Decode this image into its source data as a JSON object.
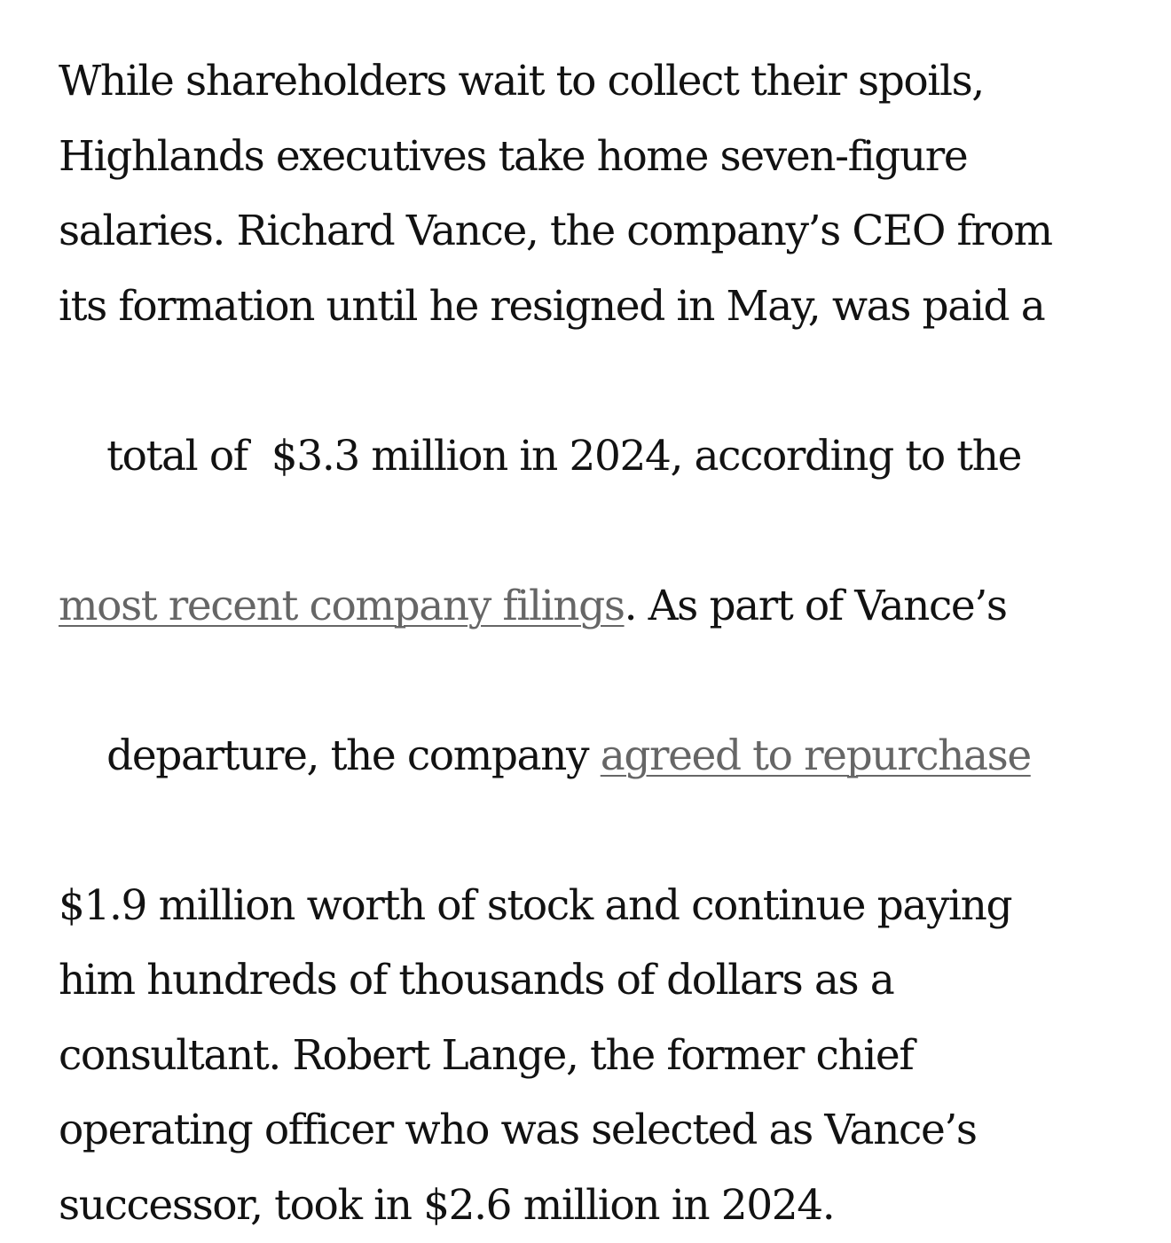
{
  "article": {
    "lines": [
      {
        "segments": [
          {
            "text": "While shareholders wait to collect their spoils,"
          }
        ]
      },
      {
        "segments": [
          {
            "text": "Highlands executives take home seven-figure"
          }
        ]
      },
      {
        "segments": [
          {
            "text": "salaries. Richard Vance, the company’s CEO from"
          }
        ]
      },
      {
        "segments": [
          {
            "text": "its formation until he resigned in May, was paid a"
          }
        ]
      },
      {
        "segments": [
          {
            "text": "total of  $3.3 million in 2024, according to the"
          }
        ]
      },
      {
        "segments": [
          {
            "text": "most recent company filings",
            "link": true
          },
          {
            "text": ". As part of Vance’s"
          }
        ]
      },
      {
        "segments": [
          {
            "text": "departure, the company "
          },
          {
            "text": "agreed to repurchase",
            "link": true
          }
        ]
      },
      {
        "segments": [
          {
            "text": "$1.9 million worth of stock and continue paying"
          }
        ]
      },
      {
        "segments": [
          {
            "text": "him hundreds of thousands of dollars as a"
          }
        ]
      },
      {
        "segments": [
          {
            "text": "consultant. Robert Lange, the former chief"
          }
        ]
      },
      {
        "segments": [
          {
            "text": "operating officer who was selected as Vance’s"
          }
        ]
      },
      {
        "segments": [
          {
            "text": "successor, took in $2.6 million in 2024."
          }
        ]
      }
    ]
  },
  "colors": {
    "text": "#121212",
    "link": "#666666",
    "background": "#ffffff"
  }
}
